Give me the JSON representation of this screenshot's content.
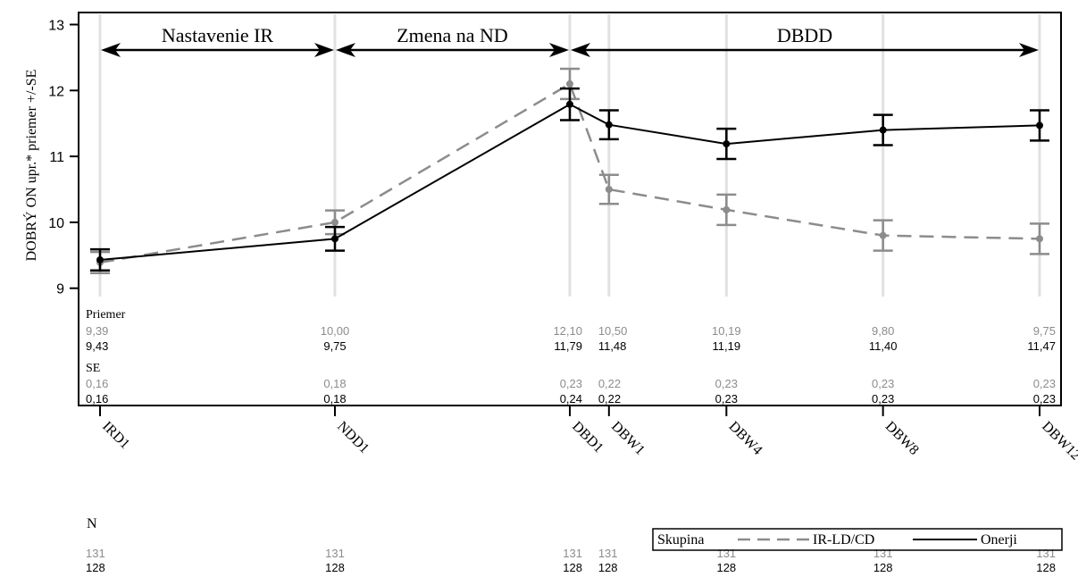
{
  "chart_data": {
    "type": "line",
    "ylabel": "DOBRÝ ON upr.* priemer +/-SE",
    "ylim": [
      8.75,
      13.1
    ],
    "y_ticks": [
      "9",
      "10",
      "11",
      "12",
      "13"
    ],
    "y_tick_values": [
      9,
      10,
      11,
      12,
      13
    ],
    "categories": [
      "IRD1",
      "NDD1",
      "DBD1",
      "DBW1",
      "DBW4",
      "DBW8",
      "DBW12"
    ],
    "x_positions": [
      0,
      9,
      18,
      19.5,
      24,
      30,
      36
    ],
    "phases": [
      {
        "label": "Nastavenie IR",
        "from": 0,
        "to": 9
      },
      {
        "label": "Zmena na ND",
        "from": 9,
        "to": 18
      },
      {
        "label": "DBDD",
        "from": 18,
        "to": 36
      }
    ],
    "series": [
      {
        "name": "IR-LD/CD",
        "color": "#8c8c8c",
        "style": "dashed",
        "values": [
          9.39,
          10.0,
          12.1,
          10.5,
          10.19,
          9.8,
          9.75
        ],
        "se": [
          0.16,
          0.18,
          0.23,
          0.22,
          0.23,
          0.23,
          0.23
        ],
        "mean_labels": [
          "9,39",
          "10,00",
          "12,10",
          "10,50",
          "10,19",
          "9,80",
          "9,75"
        ],
        "se_labels": [
          "0,16",
          "0,18",
          "0,23",
          "0,22",
          "0,23",
          "0,23",
          "0,23"
        ],
        "n_labels": [
          "131",
          "131",
          "131",
          "131",
          "131",
          "131",
          "131"
        ]
      },
      {
        "name": "Onerji",
        "color": "#000000",
        "style": "solid",
        "values": [
          9.43,
          9.75,
          11.79,
          11.48,
          11.19,
          11.4,
          11.47
        ],
        "se": [
          0.16,
          0.18,
          0.24,
          0.22,
          0.23,
          0.23,
          0.23
        ],
        "mean_labels": [
          "9,43",
          "9,75",
          "11,79",
          "11,48",
          "11,19",
          "11,40",
          "11,47"
        ],
        "se_labels": [
          "0,16",
          "0,18",
          "0,24",
          "0,22",
          "0,23",
          "0,23",
          "0,23"
        ],
        "n_labels": [
          "128",
          "128",
          "128",
          "128",
          "128",
          "128",
          "128"
        ]
      }
    ],
    "table_labels": {
      "mean": "Priemer",
      "se": "SE",
      "n": "N"
    },
    "legend": {
      "title": "Skupina",
      "placement": "bottom-right"
    },
    "grid": "vertical at categories"
  }
}
